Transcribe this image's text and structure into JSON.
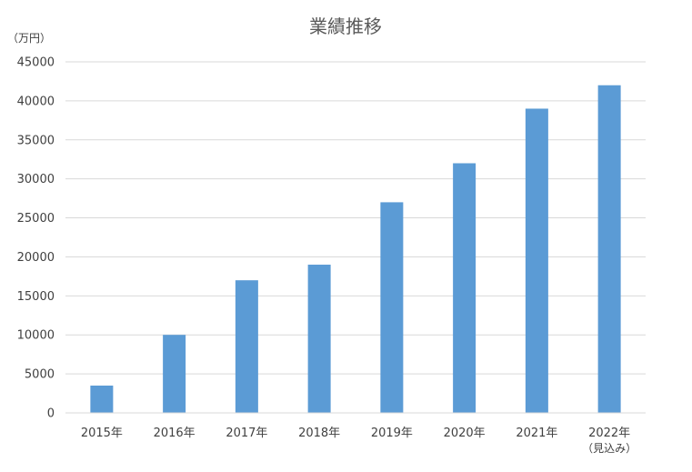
{
  "chart_data": {
    "type": "bar",
    "title": "業績推移",
    "ylabel": "（万円）",
    "xlabel": "",
    "categories": [
      "2015年",
      "2016年",
      "2017年",
      "2018年",
      "2019年",
      "2020年",
      "2021年",
      "2022年"
    ],
    "category_notes": [
      "",
      "",
      "",
      "",
      "",
      "",
      "",
      "（見込み）"
    ],
    "values": [
      3500,
      10000,
      17000,
      19000,
      27000,
      32000,
      39000,
      42000
    ],
    "ylim": [
      0,
      45000
    ],
    "yticks": [
      "0",
      "5000",
      "10000",
      "15000",
      "20000",
      "25000",
      "30000",
      "35000",
      "40000",
      "45000"
    ],
    "grid": true,
    "legend": "none",
    "bar_color": "#5B9BD5",
    "grid_color": "#D9D9D9"
  }
}
